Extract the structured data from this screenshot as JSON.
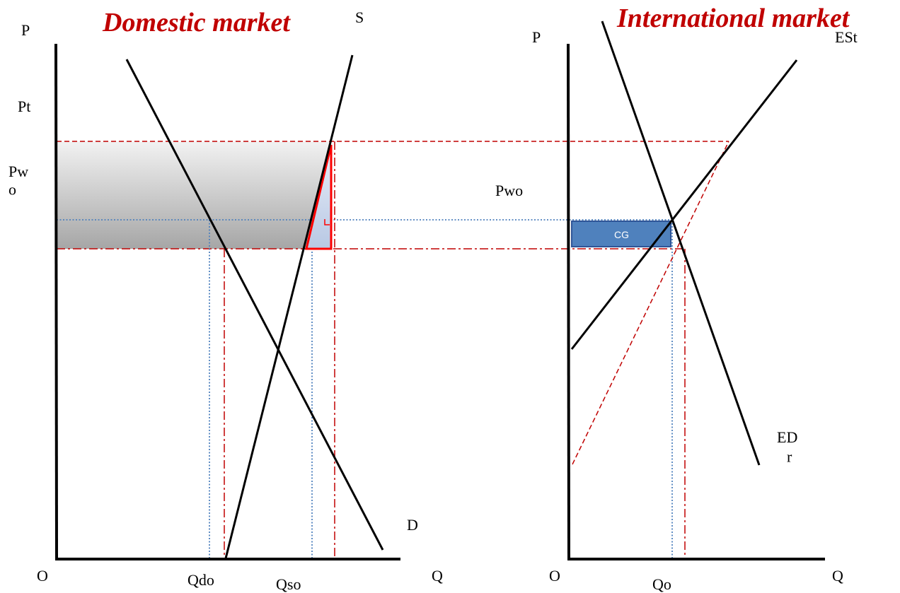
{
  "colors": {
    "title": "#c00000",
    "axis": "#000000",
    "curve": "#000000",
    "red_dashed": "#c00000",
    "blue_dotted": "#4f81bd",
    "gain_box": "#4f81bd",
    "gain_box_border": "#2f5597",
    "triangle": "#ff0000"
  },
  "domestic": {
    "title": "Domestic market",
    "y_axis_label": "P",
    "x_axis_label": "Q",
    "origin_label": "O",
    "supply_label": "S",
    "demand_label": "D",
    "price_label_top": "Pt",
    "price_label_world": "Pw\no",
    "qty_demand_label": "Qdo",
    "qty_supply_label": "Qso"
  },
  "international": {
    "title": "International market",
    "y_axis_label": "P",
    "x_axis_label": "Q",
    "origin_label": "O",
    "export_supply_label": "ESt",
    "export_demand_label": "ED\nr",
    "price_label_world": "Pwo",
    "qty_label": "Qo",
    "gain_box_label": "CG"
  }
}
